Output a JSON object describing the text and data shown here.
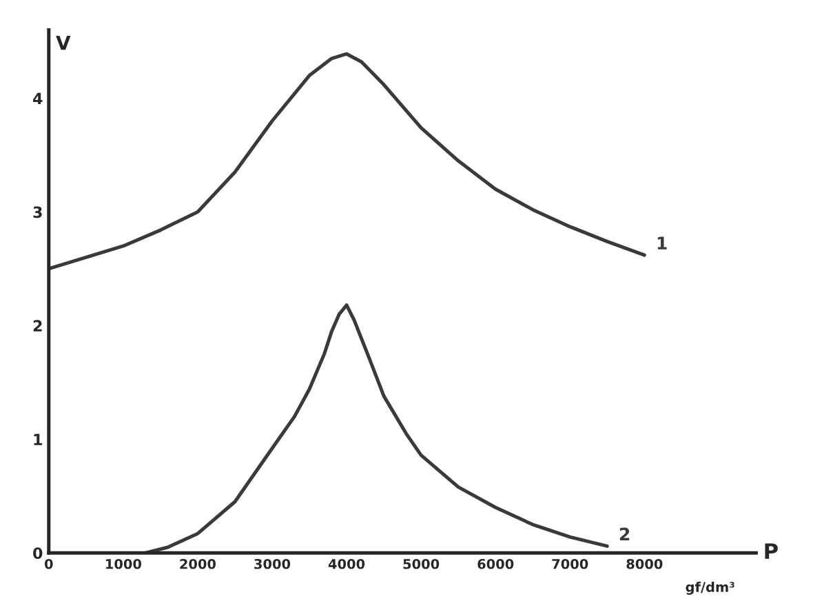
{
  "chart_data": {
    "type": "line",
    "xlabel": "P",
    "ylabel": "V",
    "annotations": [
      "gf/dm³"
    ],
    "xlim": [
      0,
      9500
    ],
    "ylim": [
      0,
      4.6
    ],
    "xticks": [
      0,
      1000,
      2000,
      3000,
      4000,
      5000,
      6000,
      7000,
      8000
    ],
    "yticks": [
      0,
      1,
      2,
      3,
      4
    ],
    "grid": false,
    "legend": false,
    "marker": "none",
    "line_style": "solid",
    "series": [
      {
        "name": "1",
        "color": "#3a3a3a",
        "x": [
          0,
          500,
          1000,
          1500,
          2000,
          2500,
          3000,
          3500,
          3800,
          4000,
          4200,
          4500,
          5000,
          5500,
          6000,
          6500,
          7000,
          7500,
          8000
        ],
        "values": [
          2.5,
          2.6,
          2.7,
          2.84,
          3.0,
          3.35,
          3.8,
          4.2,
          4.35,
          4.39,
          4.32,
          4.12,
          3.74,
          3.45,
          3.2,
          3.02,
          2.87,
          2.74,
          2.62
        ]
      },
      {
        "name": "2",
        "color": "#3a3a3a",
        "x": [
          1300,
          1600,
          2000,
          2500,
          3000,
          3300,
          3500,
          3700,
          3800,
          3900,
          4000,
          4100,
          4300,
          4500,
          4800,
          5000,
          5500,
          6000,
          6500,
          7000,
          7500
        ],
        "values": [
          0,
          0.05,
          0.17,
          0.45,
          0.92,
          1.2,
          1.44,
          1.75,
          1.95,
          2.1,
          2.18,
          2.05,
          1.72,
          1.38,
          1.05,
          0.86,
          0.58,
          0.4,
          0.25,
          0.14,
          0.06
        ]
      }
    ]
  }
}
